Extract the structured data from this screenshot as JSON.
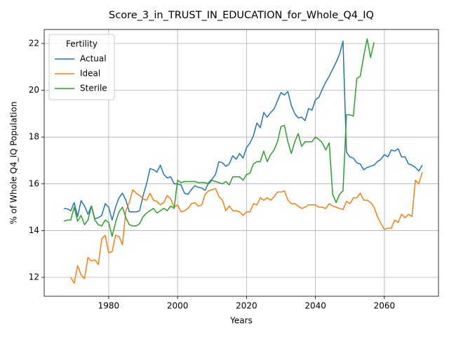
{
  "chart_data": {
    "type": "line",
    "title": "Score_3_in_TRUST_IN_EDUCATION_for_Whole_Q4_IQ",
    "x_label": "Years",
    "y_label": "% of Whole Q4_IQ Population",
    "legend_title": "Fertility",
    "legend_position": "upper left",
    "grid": true,
    "xlim": [
      1961.3,
      2075.7
    ],
    "ylim": [
      11.19,
      22.6
    ],
    "xticks": [
      1980,
      2000,
      2020,
      2040,
      2060
    ],
    "yticks": [
      12,
      14,
      16,
      18,
      20,
      22
    ],
    "x": [
      1967,
      1968,
      1969,
      1970,
      1971,
      1972,
      1973,
      1974,
      1975,
      1976,
      1977,
      1978,
      1979,
      1980,
      1981,
      1982,
      1983,
      1984,
      1985,
      1986,
      1987,
      1988,
      1989,
      1990,
      1991,
      1992,
      1993,
      1994,
      1995,
      1996,
      1997,
      1998,
      1999,
      2000,
      2001,
      2002,
      2003,
      2004,
      2005,
      2006,
      2007,
      2008,
      2009,
      2010,
      2011,
      2012,
      2013,
      2014,
      2015,
      2016,
      2017,
      2018,
      2019,
      2020,
      2021,
      2022,
      2023,
      2024,
      2025,
      2026,
      2027,
      2028,
      2029,
      2030,
      2031,
      2032,
      2033,
      2034,
      2035,
      2036,
      2037,
      2038,
      2039,
      2040,
      2041,
      2042,
      2043,
      2044,
      2045,
      2046,
      2047,
      2048,
      2049,
      2050,
      2051,
      2052,
      2053,
      2054,
      2055,
      2056,
      2057,
      2058,
      2059,
      2060,
      2061,
      2062,
      2063,
      2064,
      2065,
      2066,
      2067,
      2068,
      2069,
      2070,
      2071
    ],
    "series": [
      {
        "name": "Actual",
        "color": "#1f77b4",
        "values": [
          14.95,
          14.93,
          14.85,
          15.2,
          14.6,
          15.28,
          15.05,
          14.7,
          15.05,
          14.5,
          14.55,
          14.65,
          15.15,
          15.0,
          14.45,
          15.0,
          15.4,
          15.6,
          15.3,
          14.8,
          14.8,
          14.8,
          14.85,
          15.5,
          16.0,
          16.65,
          16.6,
          16.5,
          16.8,
          16.4,
          16.25,
          16.3,
          16.0,
          16.0,
          15.95,
          15.6,
          15.55,
          15.75,
          15.92,
          15.85,
          15.82,
          15.72,
          16.05,
          16.2,
          16.4,
          16.95,
          16.9,
          16.75,
          16.85,
          17.2,
          17.05,
          17.3,
          17.1,
          17.55,
          17.75,
          18.05,
          18.6,
          18.4,
          19.05,
          18.85,
          19.05,
          19.2,
          19.55,
          19.9,
          19.8,
          19.95,
          19.35,
          19.0,
          18.82,
          18.85,
          18.7,
          19.22,
          19.15,
          19.6,
          19.7,
          20.05,
          20.35,
          20.6,
          20.9,
          21.2,
          21.55,
          22.1,
          17.35,
          17.15,
          17.1,
          16.9,
          16.85,
          16.6,
          16.7,
          16.75,
          16.8,
          16.95,
          17.05,
          17.25,
          17.15,
          17.45,
          17.4,
          17.5,
          17.15,
          17.15,
          16.85,
          16.8,
          16.7,
          16.55,
          16.8
        ]
      },
      {
        "name": "Ideal",
        "color": "#ff7f0e",
        "values": [
          null,
          null,
          12.0,
          11.75,
          12.5,
          12.1,
          11.95,
          12.85,
          12.7,
          12.75,
          12.55,
          13.65,
          13.8,
          13.05,
          13.1,
          13.8,
          13.75,
          13.4,
          14.85,
          15.2,
          15.75,
          15.6,
          15.5,
          15.35,
          15.3,
          15.6,
          15.3,
          15.25,
          15.1,
          15.2,
          15.5,
          15.35,
          15.0,
          15.1,
          14.8,
          14.85,
          14.95,
          15.15,
          15.2,
          15.05,
          15.1,
          15.55,
          15.7,
          15.75,
          15.8,
          15.45,
          15.3,
          14.85,
          15.05,
          14.85,
          14.85,
          14.8,
          14.65,
          14.8,
          14.8,
          15.15,
          15.1,
          15.4,
          15.3,
          15.4,
          15.3,
          15.45,
          15.65,
          15.65,
          15.7,
          15.3,
          15.15,
          15.15,
          15.05,
          14.95,
          15.0,
          15.1,
          15.1,
          15.1,
          15.0,
          15.0,
          14.95,
          15.15,
          15.05,
          15.0,
          14.95,
          14.9,
          15.25,
          15.15,
          15.4,
          15.4,
          15.6,
          15.3,
          15.3,
          15.2,
          15.0,
          14.6,
          14.3,
          14.05,
          14.1,
          14.1,
          14.45,
          14.35,
          14.7,
          14.55,
          14.7,
          14.6,
          16.15,
          16.0,
          16.5
        ]
      },
      {
        "name": "Sterile",
        "color": "#2ca02c",
        "values": [
          14.4,
          14.45,
          14.45,
          15.0,
          14.4,
          14.65,
          14.25,
          14.45,
          15.05,
          14.45,
          14.25,
          14.2,
          14.45,
          14.35,
          13.75,
          14.35,
          14.8,
          15.0,
          14.55,
          14.25,
          14.2,
          14.2,
          14.3,
          14.6,
          14.75,
          14.85,
          14.95,
          14.75,
          14.85,
          14.95,
          14.85,
          15.05,
          14.95,
          16.15,
          16.05,
          16.1,
          16.1,
          16.1,
          16.1,
          16.05,
          16.05,
          16.05,
          16.0,
          16.15,
          16.1,
          16.05,
          16.0,
          16.1,
          15.95,
          16.3,
          16.3,
          16.3,
          16.15,
          16.4,
          16.45,
          16.85,
          16.95,
          16.95,
          17.4,
          16.95,
          17.25,
          17.45,
          17.8,
          18.45,
          18.5,
          17.8,
          17.3,
          17.8,
          18.15,
          17.6,
          17.8,
          17.8,
          17.8,
          18.0,
          17.9,
          17.75,
          17.45,
          17.75,
          15.55,
          15.2,
          15.55,
          15.7,
          18.95,
          18.95,
          18.9,
          20.5,
          20.6,
          21.45,
          22.2,
          21.4,
          22.05,
          null,
          null,
          null,
          null,
          null,
          null,
          null,
          null,
          null,
          null,
          null,
          null,
          null,
          null
        ]
      }
    ]
  }
}
